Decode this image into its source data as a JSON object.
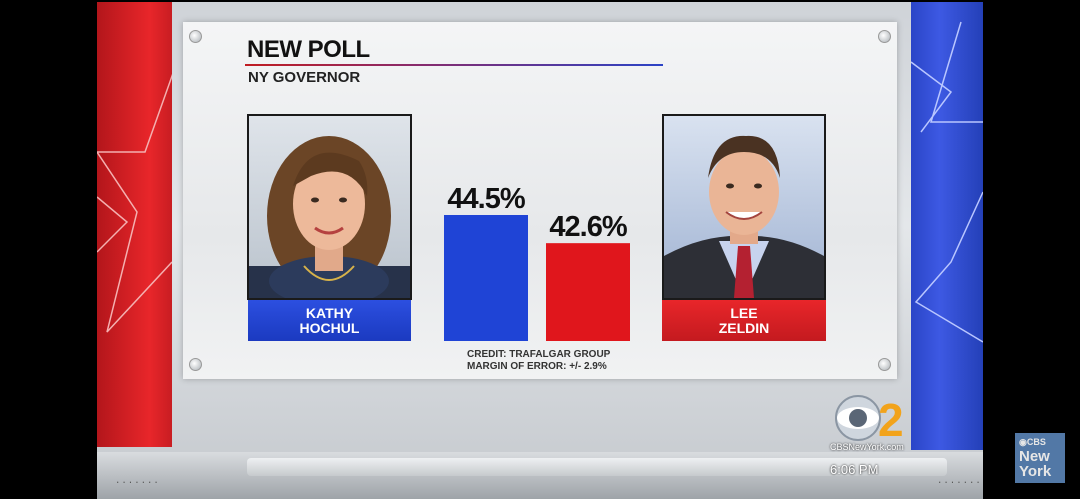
{
  "graphic": {
    "title": "NEW POLL",
    "subtitle": "NY GOVERNOR",
    "credit_line1": "CREDIT: TRAFALGAR GROUP",
    "credit_line2": "MARGIN OF ERROR:  +/- 2.9%"
  },
  "candidates": [
    {
      "first": "KATHY",
      "last": "HOCHUL",
      "percent_label": "44.5%",
      "color": "#1f44d6"
    },
    {
      "first": "LEE",
      "last": "ZELDIN",
      "percent_label": "42.6%",
      "color": "#e0161c"
    }
  ],
  "chart_data": {
    "type": "bar",
    "categories": [
      "KATHY HOCHUL",
      "LEE ZELDIN"
    ],
    "values": [
      44.5,
      42.6
    ],
    "data_labels": [
      "44.5%",
      "42.6%"
    ],
    "colors": [
      "#1f44d6",
      "#e0161c"
    ],
    "title": "NEW POLL",
    "subtitle": "NY GOVERNOR",
    "axis_visible": false,
    "grid": false,
    "baseline_percent": 36
  },
  "branding": {
    "station_logo": "CBS 2",
    "url": "CBSNewYork.com",
    "time": "6:06 PM",
    "corner_logo_line1": "◉CBS",
    "corner_logo_line2": "New",
    "corner_logo_line3": "York",
    "floor_dots": "......."
  },
  "icons": {
    "red_wall_star": "star-outline-icon",
    "blue_wall_star": "star-outline-icon"
  }
}
